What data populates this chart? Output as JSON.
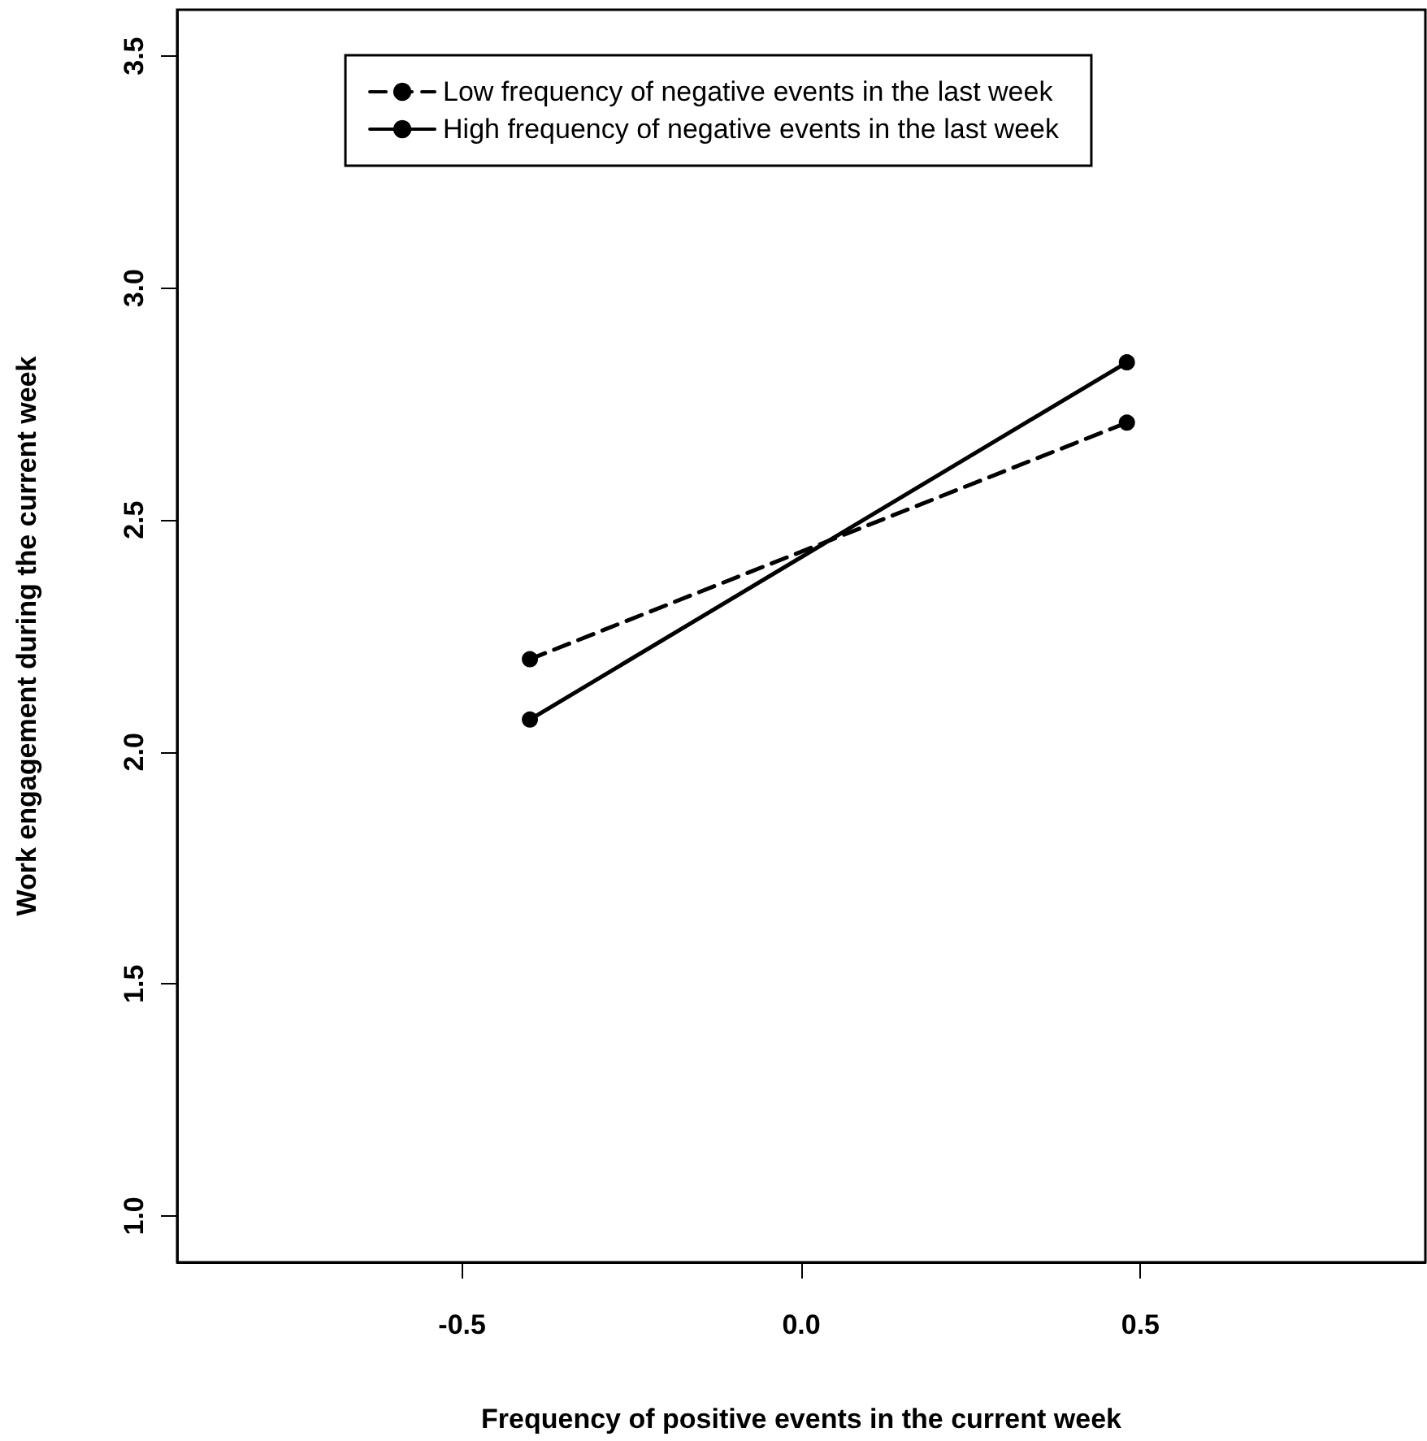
{
  "chart_data": {
    "type": "line",
    "xlabel": "Frequency of positive events in the current week",
    "ylabel": "Work engagement during the current week",
    "x": [
      -0.4,
      0.48
    ],
    "series": [
      {
        "name": "Low frequency of negative events in the last week",
        "color": "#000000",
        "values": [
          2.2,
          2.71
        ],
        "line_style": "dashed"
      },
      {
        "name": "High frequency of negative events in the last week",
        "color": "#000000",
        "values": [
          2.07,
          2.84
        ],
        "line_style": "solid"
      }
    ],
    "xlim": [
      -0.92,
      0.92
    ],
    "xticks": [
      -0.5,
      {
        "value": 0,
        "label": "0.0"
      },
      0.5
    ],
    "ylim": [
      0.9,
      3.6
    ],
    "yticks": [
      {
        "value": 1,
        "label": "1.0"
      },
      1.5,
      {
        "value": 2,
        "label": "2.0"
      },
      2.5,
      {
        "value": 3,
        "label": "3.0"
      },
      3.5
    ],
    "grid": false,
    "legend": "top",
    "marker": "circle"
  }
}
